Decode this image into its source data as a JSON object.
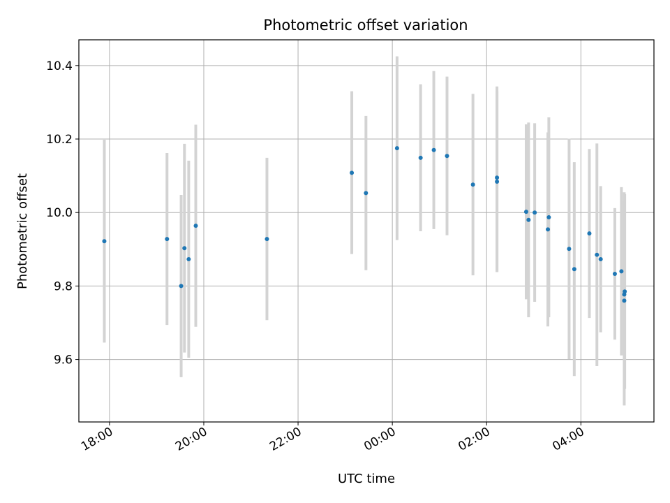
{
  "chart_data": {
    "type": "scatter",
    "title": "Photometric offset variation",
    "xlabel": "UTC time",
    "ylabel": "Photometric offset",
    "grid": true,
    "x_unit": "UTC hour (hours past 00:00, negative = previous day)",
    "xlim": [
      -6.65,
      5.55
    ],
    "ylim": [
      9.43,
      10.47
    ],
    "x_ticks": [
      {
        "value": -6,
        "label": "18:00"
      },
      {
        "value": -4,
        "label": "20:00"
      },
      {
        "value": -2,
        "label": "22:00"
      },
      {
        "value": 0,
        "label": "00:00"
      },
      {
        "value": 2,
        "label": "02:00"
      },
      {
        "value": 4,
        "label": "04:00"
      }
    ],
    "y_ticks": [
      {
        "value": 9.6,
        "label": "9.6"
      },
      {
        "value": 9.8,
        "label": "9.8"
      },
      {
        "value": 10.0,
        "label": "10.0"
      },
      {
        "value": 10.2,
        "label": "10.2"
      },
      {
        "value": 10.4,
        "label": "10.4"
      }
    ],
    "marker_color": "#1f77b4",
    "errorbar_color": "#d3d3d3",
    "points": [
      {
        "time": "17:55",
        "x": -6.11,
        "y": 9.922,
        "low": 9.646,
        "high": 10.198
      },
      {
        "time": "19:15",
        "x": -4.78,
        "y": 9.928,
        "low": 9.694,
        "high": 10.162
      },
      {
        "time": "19:31",
        "x": -4.48,
        "y": 9.8,
        "low": 9.552,
        "high": 10.048
      },
      {
        "time": "19:35",
        "x": -4.41,
        "y": 9.903,
        "low": 9.619,
        "high": 10.187
      },
      {
        "time": "19:41",
        "x": -4.32,
        "y": 9.873,
        "low": 9.605,
        "high": 10.141
      },
      {
        "time": "19:50",
        "x": -4.17,
        "y": 9.964,
        "low": 9.689,
        "high": 10.239
      },
      {
        "time": "21:20",
        "x": -2.66,
        "y": 9.928,
        "low": 9.707,
        "high": 10.149
      },
      {
        "time": "23:08",
        "x": -0.86,
        "y": 10.108,
        "low": 9.887,
        "high": 10.33
      },
      {
        "time": "23:26",
        "x": -0.56,
        "y": 10.053,
        "low": 9.843,
        "high": 10.263
      },
      {
        "time": "00:06",
        "x": 0.1,
        "y": 10.175,
        "low": 9.925,
        "high": 10.425
      },
      {
        "time": "00:36",
        "x": 0.6,
        "y": 10.149,
        "low": 9.949,
        "high": 10.349
      },
      {
        "time": "00:53",
        "x": 0.88,
        "y": 10.17,
        "low": 9.955,
        "high": 10.385
      },
      {
        "time": "01:10",
        "x": 1.16,
        "y": 10.154,
        "low": 9.938,
        "high": 10.37
      },
      {
        "time": "01:43",
        "x": 1.71,
        "y": 10.076,
        "low": 9.829,
        "high": 10.323
      },
      {
        "time": "02:13",
        "x": 2.22,
        "y": 10.095,
        "low": 9.838,
        "high": 10.343
      },
      {
        "time": "02:13",
        "x": 2.22,
        "y": 10.084,
        "low": 9.838,
        "high": 10.33
      },
      {
        "time": "02:51",
        "x": 2.84,
        "y": 10.002,
        "low": 9.764,
        "high": 10.24
      },
      {
        "time": "02:53",
        "x": 2.89,
        "y": 9.98,
        "low": 9.715,
        "high": 10.245
      },
      {
        "time": "03:01",
        "x": 3.02,
        "y": 10.0,
        "low": 9.757,
        "high": 10.243
      },
      {
        "time": "03:18",
        "x": 3.3,
        "y": 9.954,
        "low": 9.69,
        "high": 10.218
      },
      {
        "time": "03:19",
        "x": 3.32,
        "y": 9.987,
        "low": 9.715,
        "high": 10.259
      },
      {
        "time": "03:45",
        "x": 3.75,
        "y": 9.901,
        "low": 9.601,
        "high": 10.201
      },
      {
        "time": "03:51",
        "x": 3.86,
        "y": 9.846,
        "low": 9.555,
        "high": 10.137
      },
      {
        "time": "04:11",
        "x": 4.18,
        "y": 9.943,
        "low": 9.713,
        "high": 10.173
      },
      {
        "time": "04:20",
        "x": 4.34,
        "y": 9.885,
        "low": 9.582,
        "high": 10.188
      },
      {
        "time": "04:25",
        "x": 4.42,
        "y": 9.873,
        "low": 9.674,
        "high": 10.072
      },
      {
        "time": "04:43",
        "x": 4.72,
        "y": 9.833,
        "low": 9.654,
        "high": 10.012
      },
      {
        "time": "04:51",
        "x": 4.86,
        "y": 9.84,
        "low": 9.611,
        "high": 10.069
      },
      {
        "time": "04:55",
        "x": 4.92,
        "y": 9.777,
        "low": 9.52,
        "high": 10.034
      },
      {
        "time": "04:55",
        "x": 4.92,
        "y": 9.76,
        "low": 9.475,
        "high": 10.055
      },
      {
        "time": "04:56",
        "x": 4.93,
        "y": 9.785,
        "low": 9.52,
        "high": 10.05
      }
    ]
  }
}
